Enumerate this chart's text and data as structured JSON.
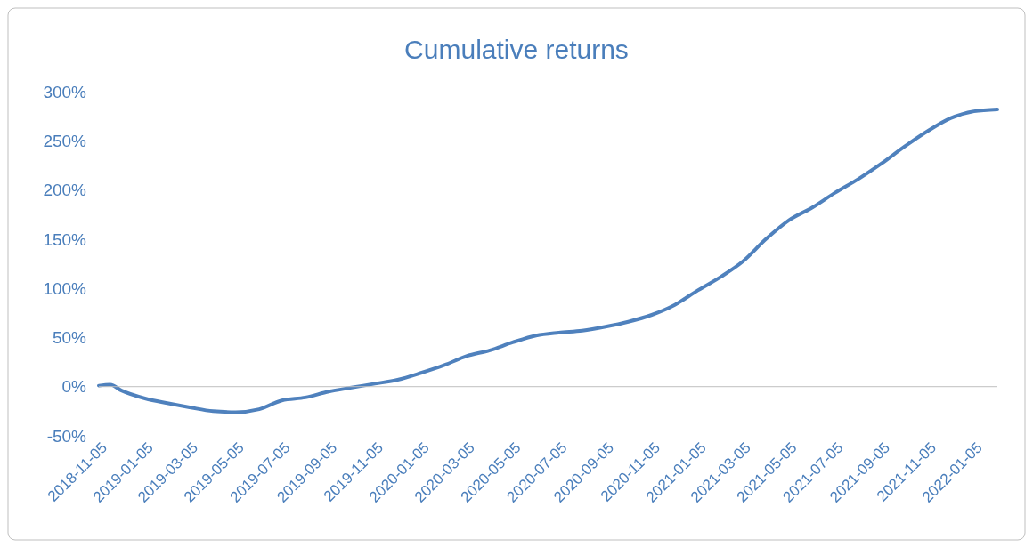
{
  "chart_data": {
    "type": "line",
    "title": "Cumulative returns",
    "x": [
      "2018-11-05",
      "2018-11-20",
      "2018-12-05",
      "2019-01-05",
      "2019-02-05",
      "2019-03-05",
      "2019-04-05",
      "2019-05-05",
      "2019-06-05",
      "2019-07-05",
      "2019-08-05",
      "2019-09-05",
      "2019-10-05",
      "2019-11-05",
      "2019-12-05",
      "2020-01-05",
      "2020-02-05",
      "2020-03-05",
      "2020-04-05",
      "2020-05-05",
      "2020-06-05",
      "2020-07-05",
      "2020-08-05",
      "2020-09-05",
      "2020-10-05",
      "2020-11-05",
      "2020-12-05",
      "2021-01-05",
      "2021-02-05",
      "2021-03-05",
      "2021-04-05",
      "2021-05-05",
      "2021-06-05",
      "2021-07-05",
      "2021-08-05",
      "2021-09-05",
      "2021-10-05",
      "2021-11-05",
      "2021-12-05",
      "2022-01-05",
      "2022-02-05"
    ],
    "series": [
      {
        "color": "#4f81bd",
        "values": [
          1,
          2,
          -4,
          -12,
          -17,
          -21,
          -25,
          -26,
          -23,
          -14,
          -11,
          -5,
          -1,
          3,
          7,
          14,
          22,
          31,
          37,
          45,
          52,
          55,
          57,
          61,
          66,
          73,
          83,
          98,
          112,
          127,
          150,
          169,
          182,
          197,
          211,
          227,
          244,
          260,
          273,
          280,
          282
        ]
      }
    ],
    "xlim": [
      "2018-11-05",
      "2022-02-05"
    ],
    "xticks": [
      "2018-11-05",
      "2019-01-05",
      "2019-03-05",
      "2019-05-05",
      "2019-07-05",
      "2019-09-05",
      "2019-11-05",
      "2020-01-05",
      "2020-03-05",
      "2020-05-05",
      "2020-07-05",
      "2020-09-05",
      "2020-11-05",
      "2021-01-05",
      "2021-03-05",
      "2021-05-05",
      "2021-07-05",
      "2021-09-05",
      "2021-11-05",
      "2022-01-05"
    ],
    "ylim": [
      -50,
      300
    ],
    "yticks": [
      {
        "value": -50,
        "label": "-50%"
      },
      {
        "value": 0,
        "label": "0%"
      },
      {
        "value": 50,
        "label": "50%"
      },
      {
        "value": 100,
        "label": "100%"
      },
      {
        "value": 150,
        "label": "150%"
      },
      {
        "value": 200,
        "label": "200%"
      },
      {
        "value": 250,
        "label": "250%"
      },
      {
        "value": 300,
        "label": "300%"
      }
    ],
    "marker": "none",
    "line_style": "solid"
  }
}
